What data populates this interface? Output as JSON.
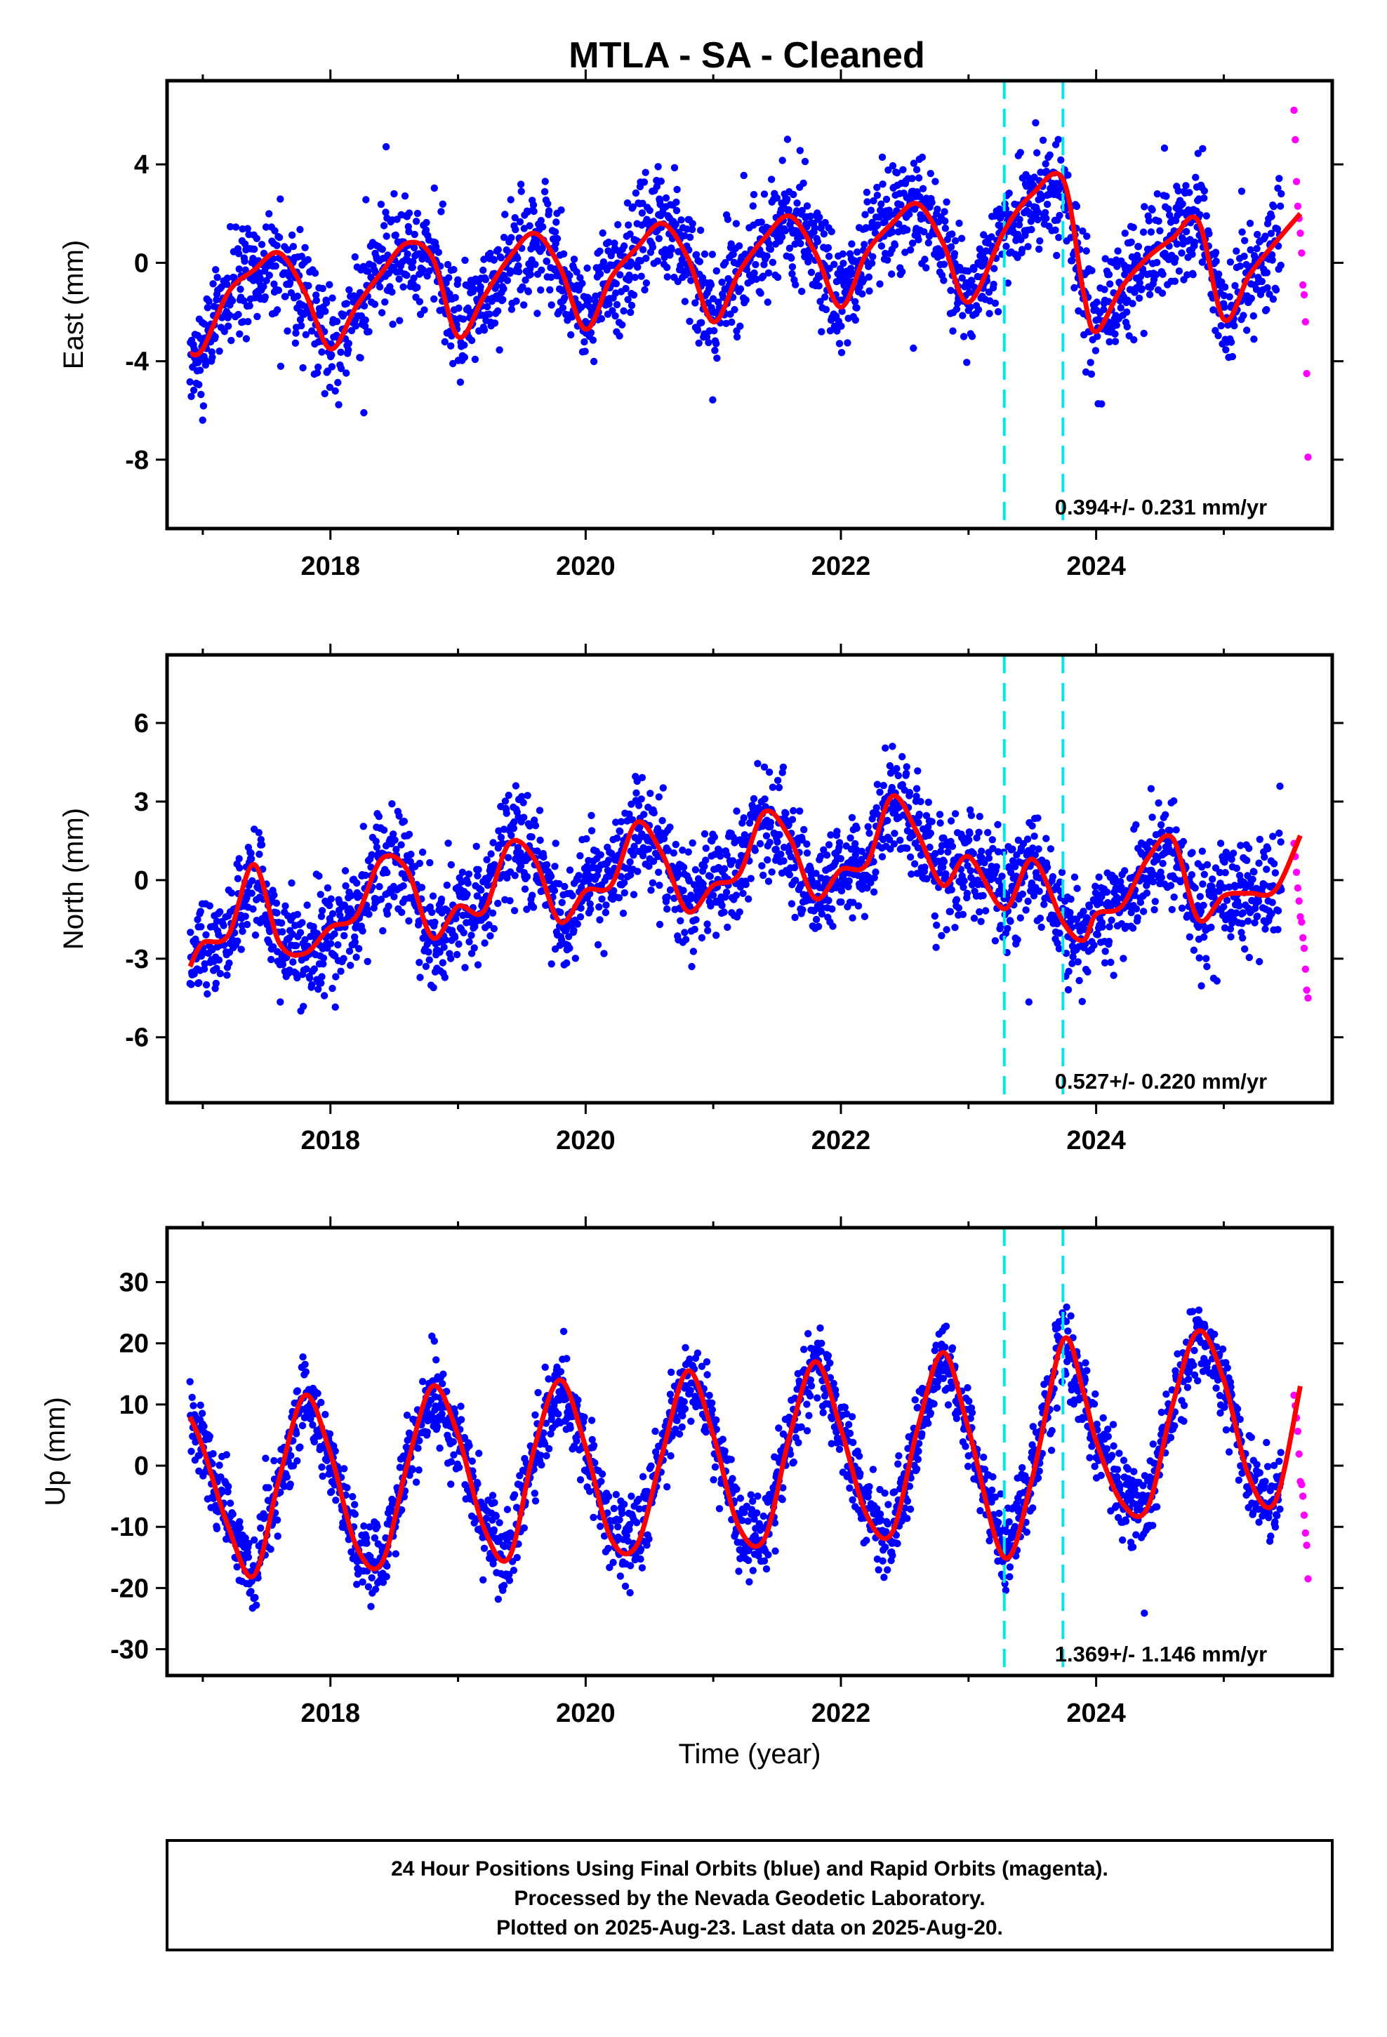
{
  "title": "MTLA  - SA - Cleaned",
  "x_axis_label": "Time (year)",
  "colors": {
    "final_points": "#0000ff",
    "rapid_points": "#ff00ff",
    "fit_line": "#ff0000",
    "offset_lines": "#00e5ee",
    "frame": "#000000"
  },
  "chart_data": [
    {
      "type": "scatter",
      "ylabel": "East (mm)",
      "xlim": [
        2016.72,
        2025.85
      ],
      "ylim": [
        -10.8,
        7.4
      ],
      "xticks": [
        2018,
        2020,
        2022,
        2024
      ],
      "yticks": [
        -8,
        -4,
        0,
        4
      ],
      "offset_epochs": [
        2023.28,
        2023.74
      ],
      "rate_label": "0.394+/- 0.231 mm/yr",
      "model": {
        "offset": 0.0,
        "trend": 0.394,
        "t0": 2021.3,
        "amp_annual": 2.3,
        "phase_annual": 0.55,
        "amp_semi": 0.4,
        "phase_semi": 0.2,
        "noise": 1.1,
        "start": [
          -3.8,
          -3.6
        ],
        "jumps": [
          [
            2023.28,
            1.4
          ],
          [
            2023.74,
            -3.2
          ]
        ]
      },
      "series": [
        {
          "name": "Final Orbits",
          "x_range": [
            2016.9,
            2025.45
          ],
          "color": "blue"
        },
        {
          "name": "Rapid Orbits",
          "x": [
            2025.55,
            2025.56,
            2025.57,
            2025.58,
            2025.59,
            2025.6,
            2025.61,
            2025.62,
            2025.63,
            2025.64,
            2025.65,
            2025.66
          ],
          "y": [
            6.2,
            5.0,
            3.3,
            2.3,
            1.8,
            1.2,
            0.4,
            -0.9,
            -1.3,
            -2.4,
            -4.5,
            -7.9
          ],
          "color": "magenta"
        }
      ],
      "fit_line": {
        "x": [
          2016.9,
          2017.0,
          2017.2,
          2017.4,
          2017.6,
          2017.8,
          2018.0,
          2018.2,
          2018.4,
          2018.6,
          2018.8,
          2019.0,
          2019.2,
          2019.4,
          2019.6,
          2019.8,
          2020.0,
          2020.2,
          2020.4,
          2020.6,
          2020.8,
          2021.0,
          2021.2,
          2021.4,
          2021.6,
          2021.8,
          2022.0,
          2022.2,
          2022.4,
          2022.6,
          2022.8,
          2023.0,
          2023.28,
          2023.5,
          2023.74,
          2023.9,
          2024.0,
          2024.2,
          2024.4,
          2024.6,
          2024.8,
          2025.0,
          2025.2,
          2025.4,
          2025.6
        ],
        "y": [
          -3.7,
          -3.5,
          -1.2,
          -0.3,
          0.4,
          -1.2,
          -3.5,
          -1.8,
          -0.4,
          0.8,
          0.2,
          -3.0,
          -1.4,
          0.2,
          1.2,
          -0.2,
          -2.7,
          -0.6,
          0.6,
          1.6,
          0.2,
          -2.4,
          -0.4,
          1.0,
          1.9,
          0.4,
          -1.8,
          0.4,
          1.6,
          2.4,
          0.8,
          -1.6,
          1.3,
          2.8,
          3.4,
          -1.2,
          -2.8,
          -1.0,
          0.2,
          1.0,
          1.7,
          -2.3,
          -0.5,
          0.8,
          2.0
        ]
      }
    },
    {
      "type": "scatter",
      "ylabel": "North (mm)",
      "xlim": [
        2016.72,
        2025.85
      ],
      "ylim": [
        -8.5,
        8.6
      ],
      "xticks": [
        2018,
        2020,
        2022,
        2024
      ],
      "yticks": [
        -6,
        -3,
        0,
        3,
        6
      ],
      "offset_epochs": [
        2023.28,
        2023.74
      ],
      "rate_label": "0.527+/- 0.220 mm/yr",
      "model": {
        "offset": 0.0,
        "trend": 0.527,
        "t0": 2021.3,
        "amp_annual": 1.6,
        "phase_annual": 0.55,
        "amp_semi": 0.3,
        "phase_semi": 0.1,
        "noise": 1.0,
        "start": [
          -4.8,
          -4.0
        ],
        "jumps": [
          [
            2023.28,
            -1.0
          ],
          [
            2023.74,
            -1.6
          ]
        ]
      },
      "series": [
        {
          "name": "Final Orbits",
          "x_range": [
            2016.9,
            2025.45
          ],
          "color": "blue"
        },
        {
          "name": "Rapid Orbits",
          "x": [
            2025.55,
            2025.56,
            2025.57,
            2025.58,
            2025.59,
            2025.6,
            2025.61,
            2025.62,
            2025.63,
            2025.64,
            2025.65,
            2025.66
          ],
          "y": [
            1.4,
            0.9,
            0.3,
            -0.3,
            -0.8,
            -1.4,
            -1.6,
            -2.2,
            -2.6,
            -3.4,
            -4.2,
            -4.5
          ],
          "color": "magenta"
        }
      ],
      "fit_line": {
        "x": [
          2016.9,
          2017.0,
          2017.2,
          2017.4,
          2017.6,
          2017.8,
          2018.0,
          2018.2,
          2018.4,
          2018.6,
          2018.8,
          2019.0,
          2019.2,
          2019.4,
          2019.6,
          2019.8,
          2020.0,
          2020.2,
          2020.4,
          2020.6,
          2020.8,
          2021.0,
          2021.2,
          2021.4,
          2021.6,
          2021.8,
          2022.0,
          2022.2,
          2022.4,
          2022.6,
          2022.8,
          2023.0,
          2023.28,
          2023.5,
          2023.74,
          2023.9,
          2024.0,
          2024.2,
          2024.4,
          2024.6,
          2024.8,
          2025.0,
          2025.2,
          2025.4,
          2025.6
        ],
        "y": [
          -3.3,
          -2.4,
          -2.1,
          0.6,
          -2.4,
          -2.8,
          -1.8,
          -1.4,
          0.8,
          0.4,
          -2.2,
          -1.0,
          -1.2,
          1.4,
          0.8,
          -1.6,
          -0.4,
          -0.2,
          2.2,
          1.0,
          -1.2,
          -0.2,
          0.2,
          2.6,
          1.6,
          -0.7,
          0.4,
          0.6,
          3.2,
          1.8,
          -0.2,
          0.9,
          -1.1,
          0.8,
          -1.6,
          -2.3,
          -1.3,
          -1.0,
          0.8,
          1.6,
          -1.5,
          -0.6,
          -0.5,
          -0.4,
          1.7
        ]
      }
    },
    {
      "type": "scatter",
      "ylabel": "Up (mm)",
      "xlim": [
        2016.72,
        2025.85
      ],
      "ylim": [
        -34.3,
        38.9
      ],
      "xticks": [
        2018,
        2020,
        2022,
        2024
      ],
      "yticks": [
        -30,
        -20,
        -10,
        0,
        10,
        20,
        30
      ],
      "offset_epochs": [
        2023.28,
        2023.74
      ],
      "rate_label": "1.369+/- 1.146 mm/yr",
      "model": {
        "offset": 0.0,
        "trend": 1.369,
        "t0": 2021.3,
        "amp_annual": 14.5,
        "phase_annual": 0.85,
        "amp_semi": 1.5,
        "phase_semi": 0.3,
        "noise": 3.3,
        "start": [
          8,
          6
        ],
        "jumps": []
      },
      "series": [
        {
          "name": "Final Orbits",
          "x_range": [
            2016.9,
            2025.45
          ],
          "color": "blue"
        },
        {
          "name": "Rapid Orbits",
          "x": [
            2025.55,
            2025.56,
            2025.57,
            2025.58,
            2025.59,
            2025.6,
            2025.61,
            2025.62,
            2025.63,
            2025.64,
            2025.65,
            2025.66
          ],
          "y": [
            11.5,
            9.8,
            7.8,
            5.6,
            1.9,
            -2.6,
            -3.1,
            -5.0,
            -8.1,
            -11.0,
            -13.0,
            -18.5
          ],
          "color": "magenta"
        }
      ],
      "fit_line": {
        "x": [
          2016.9,
          2017.0,
          2017.2,
          2017.4,
          2017.6,
          2017.8,
          2018.0,
          2018.2,
          2018.4,
          2018.6,
          2018.8,
          2019.0,
          2019.2,
          2019.4,
          2019.6,
          2019.8,
          2020.0,
          2020.2,
          2020.4,
          2020.6,
          2020.8,
          2021.0,
          2021.2,
          2021.4,
          2021.6,
          2021.8,
          2022.0,
          2022.2,
          2022.4,
          2022.6,
          2022.8,
          2023.0,
          2023.28,
          2023.5,
          2023.74,
          2023.9,
          2024.0,
          2024.2,
          2024.4,
          2024.6,
          2024.8,
          2025.0,
          2025.2,
          2025.4,
          2025.6
        ],
        "y": [
          8,
          3,
          -10,
          -18,
          -2,
          11.5,
          2,
          -13,
          -16,
          0,
          13,
          5,
          -10,
          -15,
          3,
          14,
          3,
          -12,
          -13,
          2,
          15.5,
          5,
          -10,
          -12,
          5,
          17,
          6,
          -8,
          -11,
          6,
          18.5,
          6,
          -15,
          -2,
          20.5,
          12,
          4,
          -6,
          -7,
          10,
          22,
          14,
          -2,
          -6,
          13
        ]
      }
    }
  ],
  "footer": {
    "line1": "24 Hour Positions Using Final Orbits (blue) and Rapid Orbits (magenta).",
    "line2": "Processed by the Nevada Geodetic Laboratory.",
    "line3": "Plotted on 2025-Aug-23. Last data on 2025-Aug-20."
  }
}
